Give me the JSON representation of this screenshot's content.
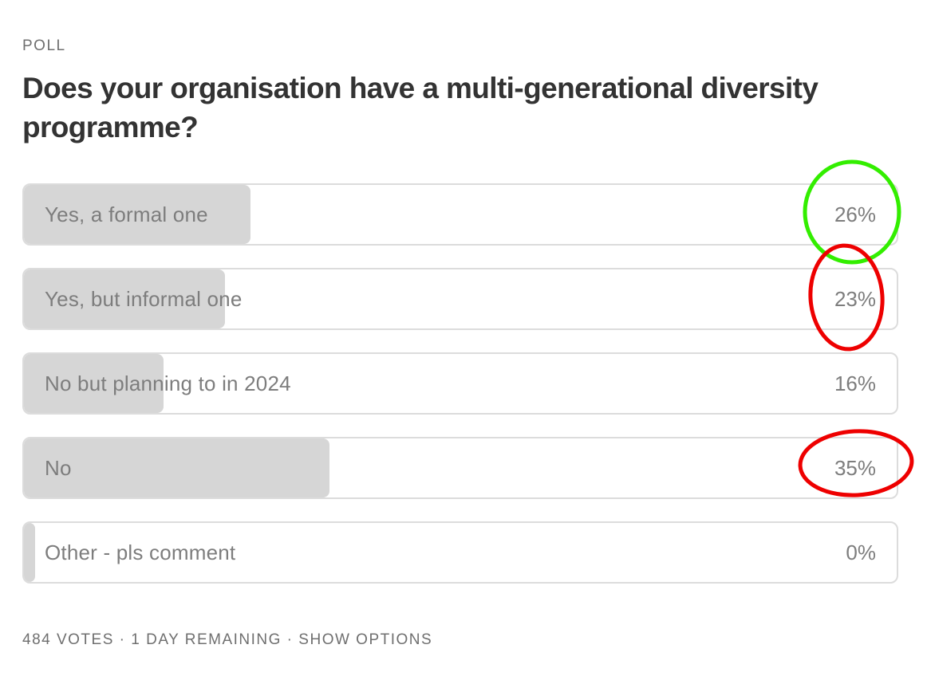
{
  "poll": {
    "label": "POLL",
    "question": "Does your organisation have a multi-generational diversity programme?",
    "options": [
      {
        "label": "Yes, a formal one",
        "percent_text": "26%",
        "share": 0.26
      },
      {
        "label": "Yes, but informal one",
        "percent_text": "23%",
        "share": 0.23
      },
      {
        "label": "No but planning to in 2024",
        "percent_text": "16%",
        "share": 0.16
      },
      {
        "label": "No",
        "percent_text": "35%",
        "share": 0.35
      },
      {
        "label": "Other - pls comment",
        "percent_text": "0%",
        "share": 0.0
      }
    ],
    "footer": {
      "votes": "484 VOTES",
      "separator": " · ",
      "remaining": "1 DAY REMAINING",
      "show_options": "SHOW OPTIONS"
    }
  },
  "annotations": {
    "circles": [
      {
        "around_option": 0,
        "color": "#33ee00"
      },
      {
        "around_option": 1,
        "color": "#ee0000"
      },
      {
        "around_option": 3,
        "color": "#ee0000"
      }
    ]
  }
}
